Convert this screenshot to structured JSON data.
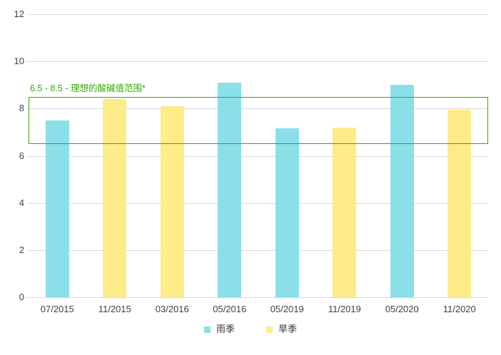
{
  "chart_data": {
    "type": "bar",
    "title": "",
    "xlabel": "",
    "ylabel": "",
    "ylim": [
      0,
      12
    ],
    "yticks": [
      0,
      2,
      4,
      6,
      8,
      10,
      12
    ],
    "grid": true,
    "legend_position": "bottom",
    "categories": [
      "07/2015",
      "11/2015",
      "03/2016",
      "05/2016",
      "05/2019",
      "11/2019",
      "05/2020",
      "11/2020"
    ],
    "series": [
      {
        "name": "雨季",
        "color": "#8adfe9",
        "values": [
          7.5,
          null,
          null,
          9.1,
          7.15,
          null,
          9.0,
          null
        ]
      },
      {
        "name": "旱季",
        "color": "#fdec88",
        "values": [
          null,
          8.4,
          8.1,
          null,
          null,
          7.2,
          null,
          7.95
        ]
      }
    ],
    "annotation": {
      "label": "6.5 - 8.5 - 理想的酸碱值范围*",
      "y_min": 6.5,
      "y_max": 8.5,
      "color": "#2fae00"
    },
    "colors": {
      "gridline": "#d9d9d9",
      "axis_text": "#404040",
      "legend_text": "#333333"
    }
  }
}
